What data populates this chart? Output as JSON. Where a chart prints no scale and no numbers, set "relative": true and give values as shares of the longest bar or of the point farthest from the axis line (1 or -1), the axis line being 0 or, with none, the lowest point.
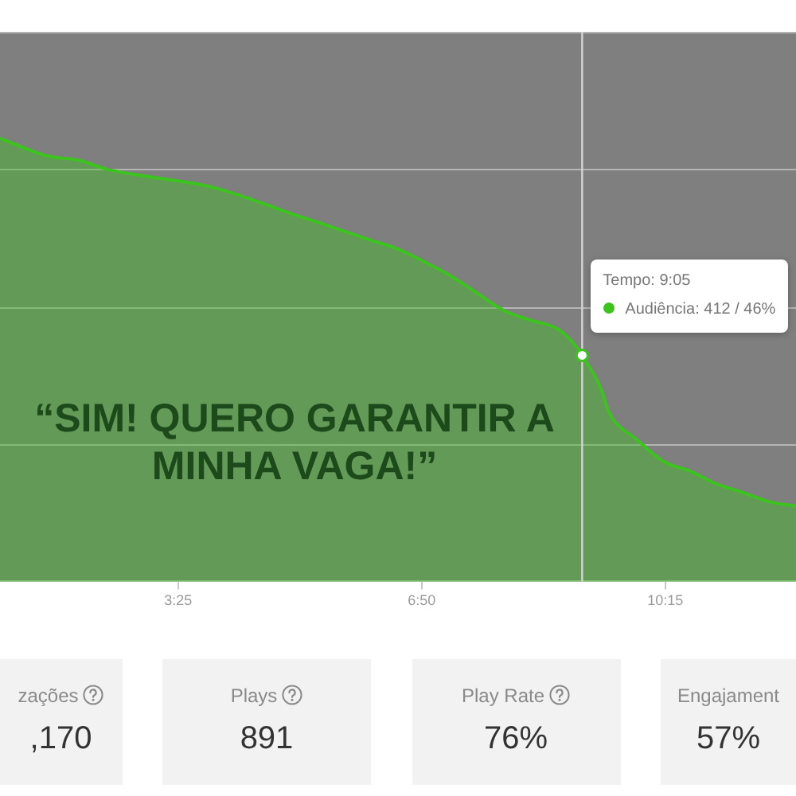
{
  "chart_data": [
    {
      "type": "area",
      "series": [
        {
          "type": "area",
          "color": "#3cc41e",
          "x": [
            55,
            95,
            122,
            145,
            189,
            233,
            269,
            300,
            323,
            367,
            390,
            413,
            434,
            457,
            480,
            501,
            524,
            537,
            545,
            560,
            568,
            591,
            614,
            635,
            658,
            681,
            702,
            725
          ],
          "values": [
            1,
            0.96,
            0.95,
            0.93,
            0.91,
            0.89,
            0.86,
            0.83,
            0.81,
            0.77,
            0.75,
            0.72,
            0.69,
            0.65,
            0.61,
            0.59,
            0.57,
            0.54,
            0.51,
            0.44,
            0.38,
            0.32,
            0.27,
            0.25,
            0.22,
            0.2,
            0.18,
            0.17
          ]
        },
        {
          "type": "scatter",
          "color": "#3cc41e",
          "marker": "circle",
          "x": [
            545
          ],
          "values": [
            0.51
          ]
        }
      ],
      "relative": true,
      "xlim": [
        55,
        725
      ],
      "xticks": [
        {
          "value": 205,
          "label": "3:25"
        },
        {
          "value": 410,
          "label": "6:50"
        },
        {
          "value": 615,
          "label": "10:15"
        }
      ],
      "grid": "y",
      "marker": "none",
      "ref_lines": [
        {
          "axis": "x",
          "value": 545,
          "color": "#d4d4d4"
        }
      ],
      "annotations": [
        "“SIM! QUERO GARANTIR A MINHA VAGA!”",
        "Tempo: 9:05",
        "Audiência: 412 / 46%"
      ]
    },
    {
      "type": "other",
      "annotations": [
        "zações",
        ",170",
        "Plays",
        "891",
        "Play Rate",
        "76%",
        "Engajament",
        "57%"
      ]
    }
  ]
}
